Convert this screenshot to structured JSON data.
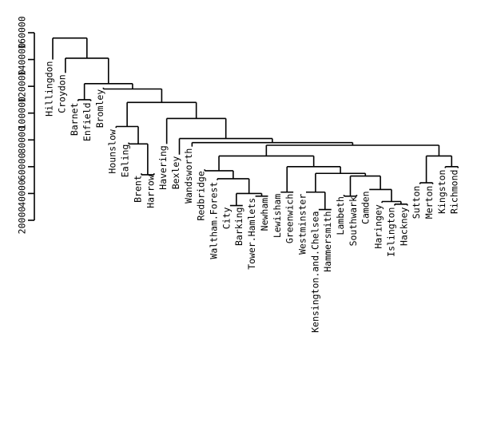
{
  "chart_data": {
    "type": "dendrogram",
    "title": "",
    "xlabel": "",
    "ylabel": "",
    "ylim": [
      20000,
      160000
    ],
    "yticks": [
      20000,
      40000,
      60000,
      80000,
      100000,
      120000,
      140000,
      160000
    ],
    "tick_labels": [
      "20000",
      "40000",
      "60000",
      "80000",
      "100000",
      "120000",
      "140000",
      "160000"
    ],
    "leaves": [
      {
        "name": "Hillingdon",
        "height": 140000
      },
      {
        "name": "Croydon",
        "height": 130000
      },
      {
        "name": "Barnet",
        "height": 109000
      },
      {
        "name": "Enfield",
        "height": 109000
      },
      {
        "name": "Bromley",
        "height": 119000
      },
      {
        "name": "Hounslow",
        "height": 89000
      },
      {
        "name": "Ealing",
        "height": 78000
      },
      {
        "name": "Brent",
        "height": 55000
      },
      {
        "name": "Harrow",
        "height": 55000
      },
      {
        "name": "Havering",
        "height": 77000
      },
      {
        "name": "Bexley",
        "height": 69000
      },
      {
        "name": "Wandsworth",
        "height": 75000
      },
      {
        "name": "Redbridge",
        "height": 58000
      },
      {
        "name": "Waltham.Forest",
        "height": 50000
      },
      {
        "name": "City",
        "height": 31000
      },
      {
        "name": "Barking",
        "height": 31000
      },
      {
        "name": "Tower.Hamlets",
        "height": 38000
      },
      {
        "name": "Newham",
        "height": 38000
      },
      {
        "name": "Lewisham",
        "height": 41000
      },
      {
        "name": "Greenwich",
        "height": 41000
      },
      {
        "name": "Westminster",
        "height": 41000
      },
      {
        "name": "Kensington.and.Chelsea",
        "height": 28000
      },
      {
        "name": "Hammersmith",
        "height": 28000
      },
      {
        "name": "Lambeth",
        "height": 39000
      },
      {
        "name": "Southwark",
        "height": 39000
      },
      {
        "name": "Camden",
        "height": 43000
      },
      {
        "name": "Haringey",
        "height": 33000
      },
      {
        "name": "Islington",
        "height": 31000
      },
      {
        "name": "Hackney",
        "height": 31000
      },
      {
        "name": "Sutton",
        "height": 47000
      },
      {
        "name": "Merton",
        "height": 47000
      },
      {
        "name": "Kingston",
        "height": 59000
      },
      {
        "name": "Richmond",
        "height": 59000
      }
    ],
    "merges": [
      {
        "a": "Islington",
        "b": "Hackney",
        "height": 32000
      },
      {
        "a": "Haringey",
        "b": "Islington+Hackney",
        "height": 34000
      },
      {
        "a": "Brent",
        "b": "Harrow",
        "height": 54000
      },
      {
        "a": "City",
        "b": "Barking",
        "height": 31000
      },
      {
        "a": "Kensington.and.Chelsea",
        "b": "Hammersmith",
        "height": 28000
      },
      {
        "a": "Tower.Hamlets",
        "b": "Newham",
        "height": 38000
      },
      {
        "a": "Lambeth",
        "b": "Southwark",
        "height": 38000
      },
      {
        "a": "City+Barking",
        "b": "Tower.Hamlets+Newham",
        "height": 40000
      },
      {
        "a": "Lewisham",
        "b": "Greenwich",
        "height": 41000
      },
      {
        "a": "Westminster",
        "b": "Kensington.and.Chelsea+Hammersmith",
        "height": 41000
      },
      {
        "a": "Camden",
        "b": "Haringey+Islington+Hackney",
        "height": 43000
      },
      {
        "a": "Sutton",
        "b": "Merton",
        "height": 48000
      },
      {
        "a": "Waltham.Forest",
        "b": "City+Barking+Tower.Hamlets+Newham",
        "height": 51000
      },
      {
        "a": "Lambeth+Southwark",
        "b": "Camden+Haringey+Islington+Hackney",
        "height": 53000
      },
      {
        "a": "Redbridge",
        "b": "Waltham.Forest+City+Barking+Tower.Hamlets+Newham",
        "height": 57000
      },
      {
        "a": "Westminster+Kensington.and.Chelsea+Hammersmith",
        "b": "Lambeth+Southwark+Camden+Haringey+Islington+Hackney",
        "height": 55000
      },
      {
        "a": "Kingston",
        "b": "Richmond",
        "height": 60000
      },
      {
        "a": "Lewisham+Greenwich",
        "b": "Westminster+...+Hackney",
        "height": 60000
      },
      {
        "a": "Sutton+Merton",
        "b": "Kingston+Richmond",
        "height": 68000
      },
      {
        "a": "Redbridge+...+Newham",
        "b": "Lewisham+...+Hackney",
        "height": 68000
      },
      {
        "a": "Ealing",
        "b": "Brent+Harrow",
        "height": 77000
      },
      {
        "a": "Redbridge+...+Hackney",
        "b": "Sutton+Merton+Kingston+Richmond",
        "height": 76000
      },
      {
        "a": "Wandsworth",
        "b": "Redbridge+...+Richmond",
        "height": 78000
      },
      {
        "a": "Bexley",
        "b": "Wandsworth+...+Richmond",
        "height": 81000
      },
      {
        "a": "Hounslow",
        "b": "Ealing+Brent+Harrow",
        "height": 90000
      },
      {
        "a": "Havering",
        "b": "Bexley+...+Richmond",
        "height": 96000
      },
      {
        "a": "Barnet",
        "b": "Enfield",
        "height": 110000
      },
      {
        "a": "Hounslow+Ealing+Brent+Harrow",
        "b": "Havering+...+Richmond",
        "height": 108000
      },
      {
        "a": "Bromley",
        "b": "Hounslow+...+Richmond",
        "height": 118000
      },
      {
        "a": "Barnet+Enfield",
        "b": "Bromley+...+Richmond",
        "height": 122000
      },
      {
        "a": "Croydon",
        "b": "Barnet+...+Richmond",
        "height": 141000
      },
      {
        "a": "Hillingdon",
        "b": "Croydon+...+Richmond",
        "height": 156000
      }
    ]
  }
}
